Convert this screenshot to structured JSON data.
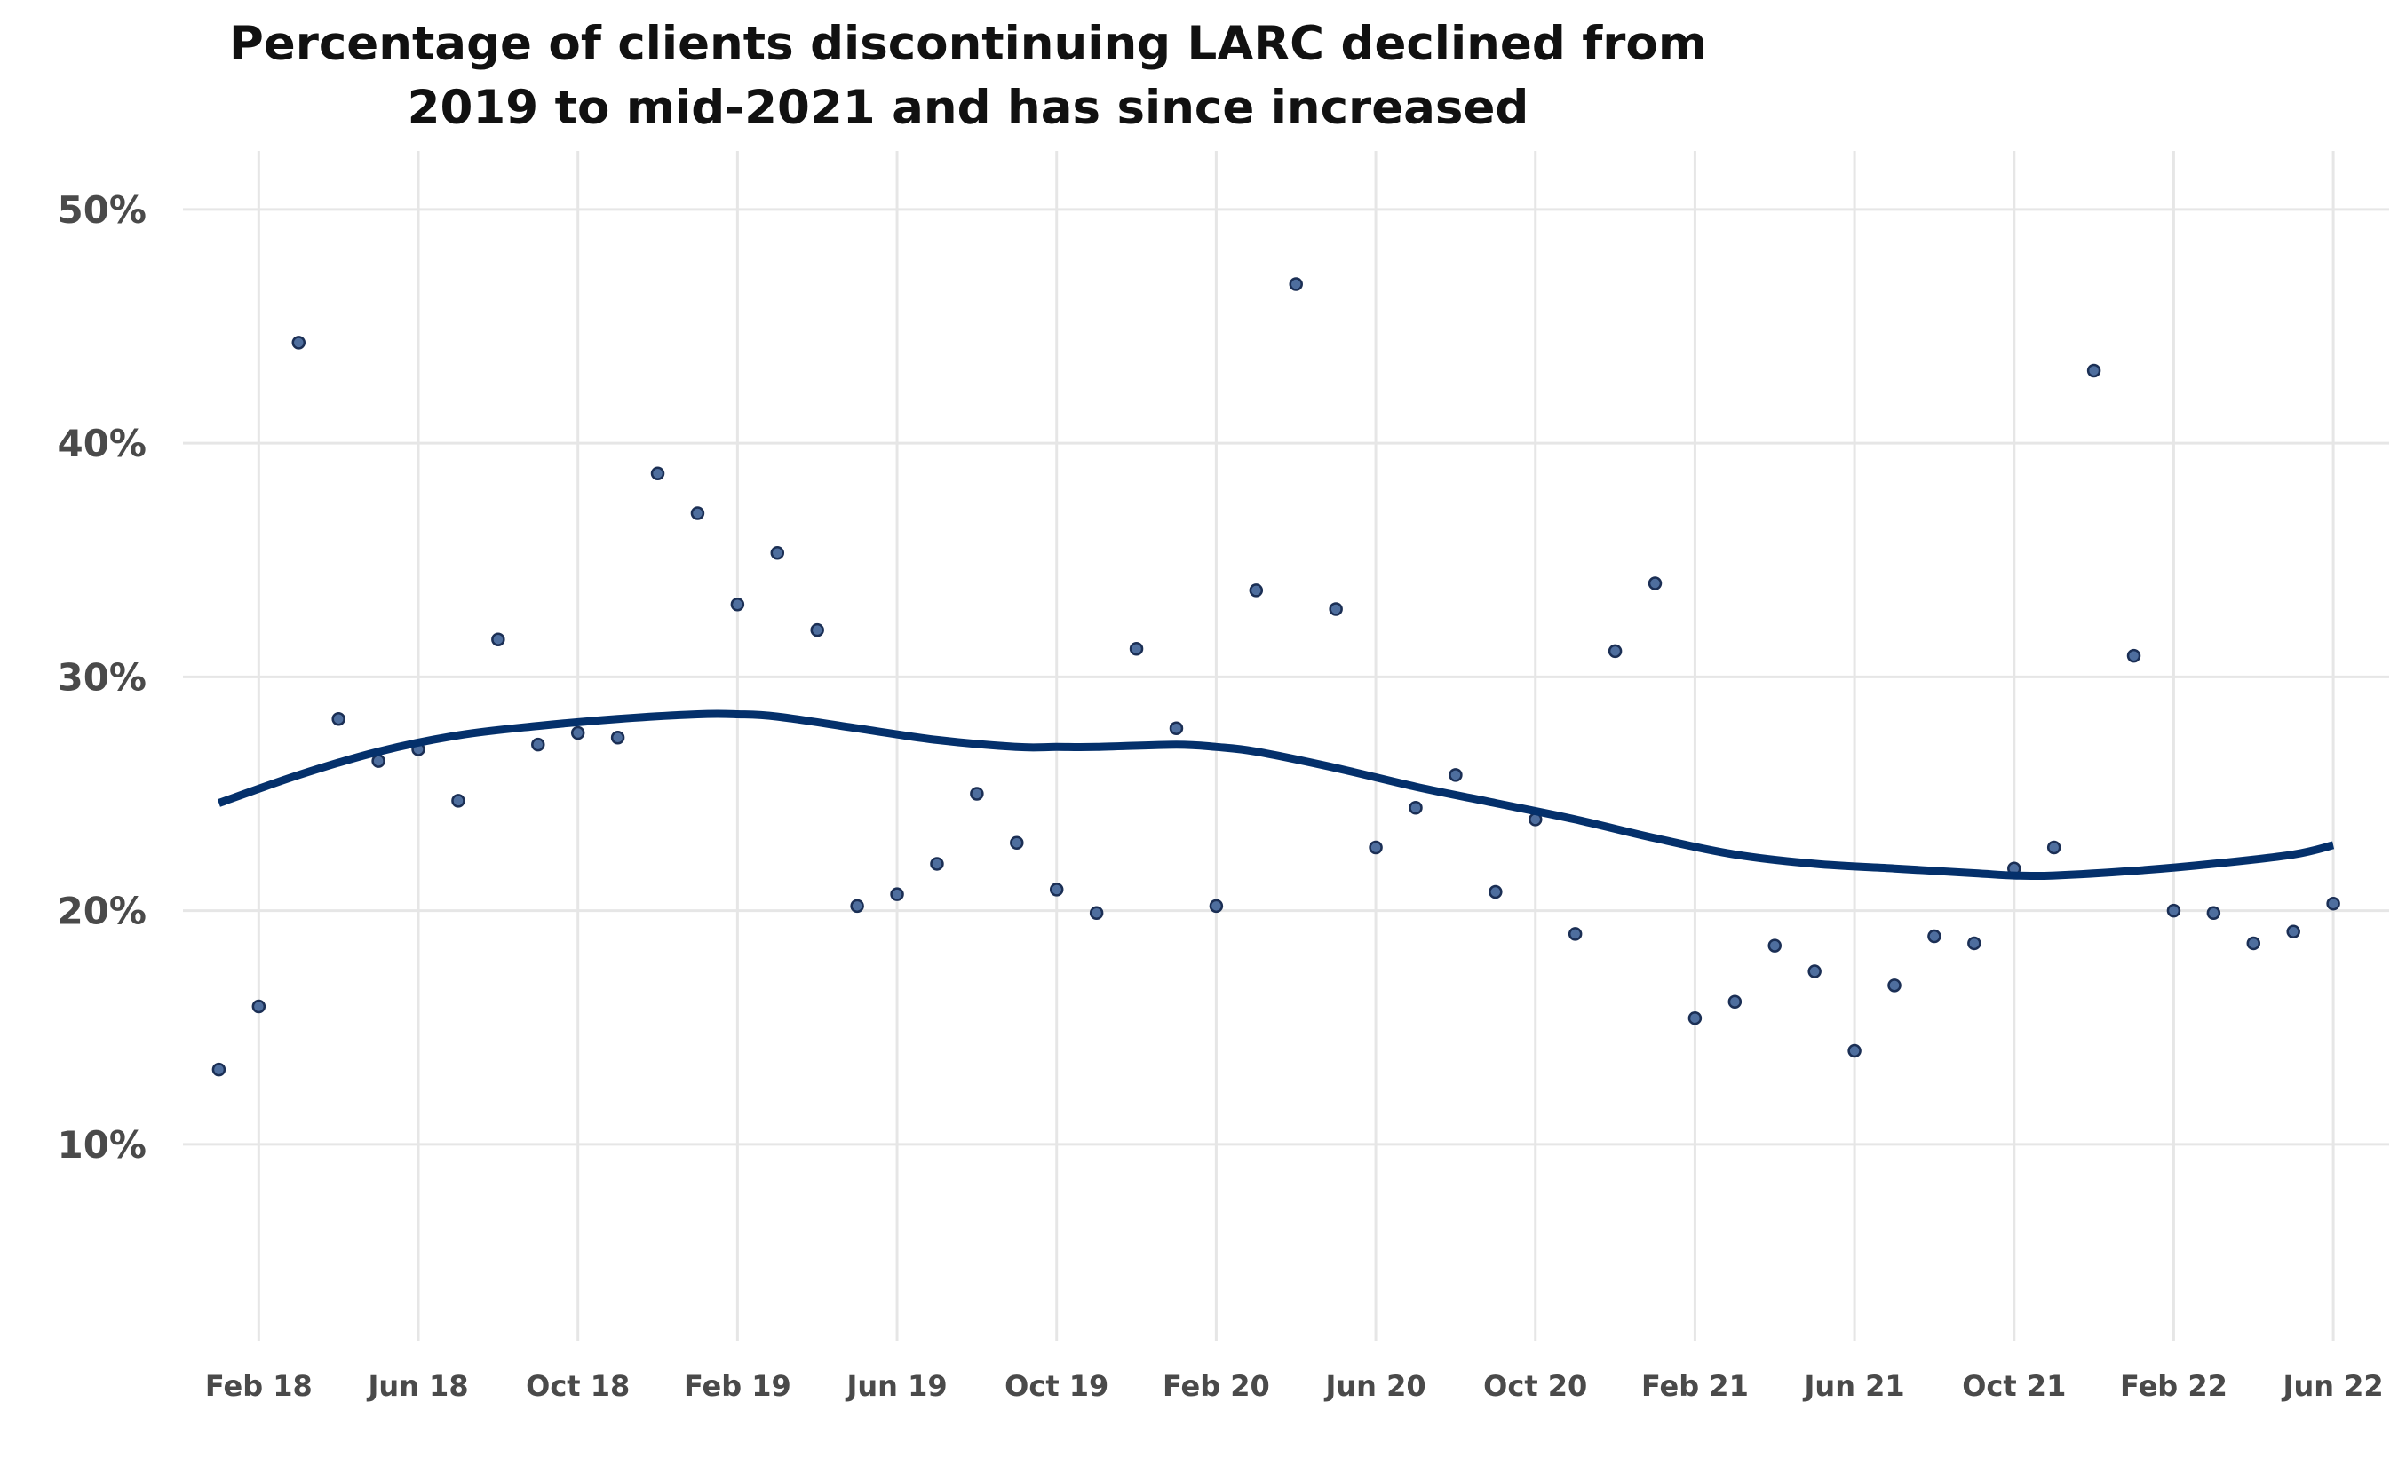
{
  "chart_data": {
    "type": "scatter",
    "title_lines": [
      "Percentage of clients discontinuing LARC declined from",
      "2019 to mid-2021 and has since increased"
    ],
    "xlabel": "",
    "ylabel": "",
    "x_ticks": [
      {
        "label": "Feb 18",
        "month": 1
      },
      {
        "label": "Jun 18",
        "month": 5
      },
      {
        "label": "Oct 18",
        "month": 9
      },
      {
        "label": "Feb 19",
        "month": 13
      },
      {
        "label": "Jun 19",
        "month": 17
      },
      {
        "label": "Oct 19",
        "month": 21
      },
      {
        "label": "Feb 20",
        "month": 25
      },
      {
        "label": "Jun 20",
        "month": 29
      },
      {
        "label": "Oct 20",
        "month": 33
      },
      {
        "label": "Feb 21",
        "month": 37
      },
      {
        "label": "Jun 21",
        "month": 41
      },
      {
        "label": "Oct 21",
        "month": 45
      },
      {
        "label": "Feb 22",
        "month": 49
      },
      {
        "label": "Jun 22",
        "month": 53
      }
    ],
    "y_ticks": [
      {
        "label": "10%",
        "value": 10
      },
      {
        "label": "20%",
        "value": 20
      },
      {
        "label": "30%",
        "value": 30
      },
      {
        "label": "40%",
        "value": 40
      },
      {
        "label": "50%",
        "value": 50
      }
    ],
    "xlim_months": [
      -0.9,
      54.4
    ],
    "ylim": [
      1.6,
      52.5
    ],
    "grid": true,
    "series": [
      {
        "kind": "points",
        "month_start": 0,
        "values": [
          13.2,
          15.9,
          44.3,
          28.2,
          26.4,
          26.9,
          24.7,
          31.6,
          27.1,
          27.6,
          27.4,
          38.7,
          37.0,
          33.1,
          35.3,
          32.0,
          20.2,
          20.7,
          22.0,
          25.0,
          22.9,
          20.9,
          19.9,
          31.2,
          27.8,
          20.2,
          33.7,
          46.8,
          32.9,
          22.7,
          24.4,
          25.8,
          20.8,
          23.9,
          19.0,
          31.1,
          34.0,
          15.4,
          16.1,
          18.5,
          17.4,
          14.0,
          16.8,
          18.9,
          18.6,
          21.8,
          22.7,
          43.1,
          30.9,
          20.0,
          19.9,
          18.6,
          19.1,
          20.3
        ]
      },
      {
        "kind": "trend",
        "month": [
          0,
          2,
          4,
          6,
          8,
          10,
          12,
          13,
          14,
          16,
          18,
          20,
          21,
          22,
          24,
          25,
          26,
          28,
          30,
          32,
          34,
          36,
          38,
          40,
          42,
          44,
          45,
          46,
          48,
          50,
          52,
          53
        ],
        "values": [
          24.6,
          25.8,
          26.8,
          27.5,
          27.9,
          28.2,
          28.4,
          28.4,
          28.3,
          27.8,
          27.3,
          27.0,
          27.0,
          27.0,
          27.1,
          27.0,
          26.8,
          26.1,
          25.3,
          24.6,
          23.9,
          23.1,
          22.4,
          22.0,
          21.8,
          21.6,
          21.5,
          21.5,
          21.7,
          22.0,
          22.4,
          22.8
        ]
      }
    ],
    "colors": {
      "point_fill": "#4e6e9e",
      "point_edge": "#1b2f55",
      "trend_line": "#04306b",
      "grid": "#e6e6e6"
    }
  }
}
